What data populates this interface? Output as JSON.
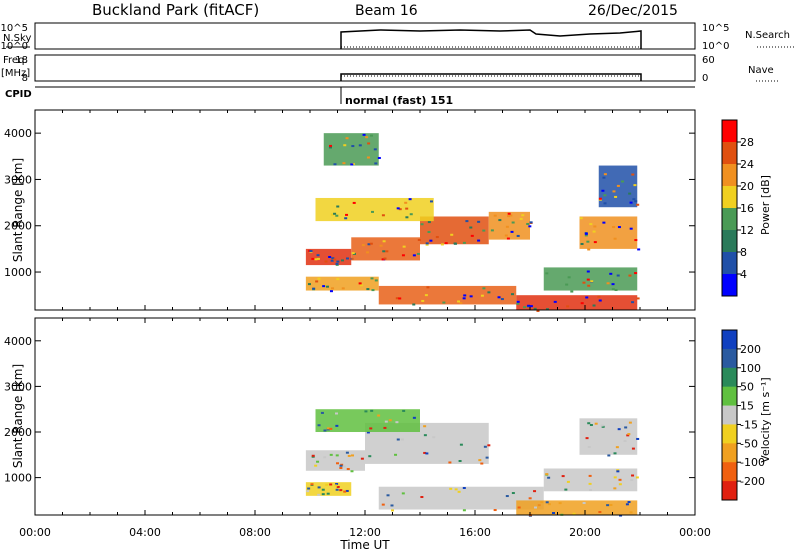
{
  "header": {
    "title": "Buckland Park (fitACF)",
    "beam": "Beam 16",
    "date": "26/Dec/2015"
  },
  "status_panels": {
    "nsky_label": "N.Sky",
    "nsearch_label": "N.Search",
    "noise_ticks_left": [
      "10^5",
      "10^0"
    ],
    "noise_ticks_right": [
      "10^5",
      "10^0"
    ],
    "freq_label_line1": "Freq.",
    "freq_label_line2": "[MHz]",
    "freq_ticks": [
      "18",
      "8"
    ],
    "nave_label": "Nave",
    "nave_ticks": [
      "60",
      "0"
    ],
    "cpid_label": "CPID",
    "cpid_text": "normal (fast) 151"
  },
  "chart_data": [
    {
      "type": "heatmap",
      "name": "power",
      "ylabel": "Slant Range [km]",
      "yticks": [
        "1000",
        "2000",
        "3000",
        "4000"
      ],
      "ylim": [
        180,
        4500
      ],
      "xlim": [
        "00:00",
        "24:00"
      ],
      "data_span": [
        "09:48",
        "21:54"
      ],
      "colorbar_label": "Power [dB]",
      "colorbar_ticks": [
        "4",
        "8",
        "12",
        "16",
        "20",
        "24",
        "28"
      ],
      "colorbar_colors": [
        "#0000ff",
        "#2050a8",
        "#2a7a5a",
        "#4a9a55",
        "#f0d020",
        "#f09020",
        "#e05010",
        "#ff0000"
      ],
      "bands": [
        {
          "t0": 9.85,
          "t1": 11.5,
          "r0": 1150,
          "r1": 1500,
          "color": "#e03010"
        },
        {
          "t0": 11.5,
          "t1": 14.0,
          "r0": 1250,
          "r1": 1750,
          "color": "#e86018"
        },
        {
          "t0": 14.0,
          "t1": 16.5,
          "r0": 1600,
          "r1": 2200,
          "color": "#e05010"
        },
        {
          "t0": 16.5,
          "t1": 18.0,
          "r0": 1700,
          "r1": 2300,
          "color": "#f09020"
        },
        {
          "t0": 9.85,
          "t1": 12.5,
          "r0": 600,
          "r1": 900,
          "color": "#f0a020"
        },
        {
          "t0": 12.5,
          "t1": 17.5,
          "r0": 300,
          "r1": 700,
          "color": "#e86018"
        },
        {
          "t0": 17.5,
          "t1": 21.9,
          "r0": 180,
          "r1": 500,
          "color": "#e03010"
        },
        {
          "t0": 18.5,
          "t1": 21.9,
          "r0": 600,
          "r1": 1100,
          "color": "#4a9a55"
        },
        {
          "t0": 19.8,
          "t1": 21.9,
          "r0": 1500,
          "r1": 2200,
          "color": "#f09020"
        },
        {
          "t0": 10.2,
          "t1": 14.5,
          "r0": 2100,
          "r1": 2600,
          "color": "#f0d020"
        },
        {
          "t0": 10.5,
          "t1": 12.5,
          "r0": 3300,
          "r1": 4000,
          "color": "#4a9a55"
        },
        {
          "t0": 20.5,
          "t1": 21.9,
          "r0": 2400,
          "r1": 3300,
          "color": "#2050a8"
        }
      ]
    },
    {
      "type": "heatmap",
      "name": "velocity",
      "ylabel": "Slant Range [km]",
      "yticks": [
        "1000",
        "2000",
        "3000",
        "4000"
      ],
      "ylim": [
        180,
        4500
      ],
      "xlim": [
        "00:00",
        "24:00"
      ],
      "xticks": [
        "00:00",
        "04:00",
        "08:00",
        "12:00",
        "16:00",
        "20:00",
        "00:00"
      ],
      "xlabel": "Time UT",
      "colorbar_label": "Velocity [m s⁻¹]",
      "colorbar_ticks": [
        "200",
        "100",
        "50",
        "15",
        "-15",
        "-50",
        "-100",
        "-200"
      ],
      "colorbar_colors": [
        "#1040c0",
        "#2a5aa0",
        "#2a8a5a",
        "#60c040",
        "#c8c8c8",
        "#f0d020",
        "#f0a020",
        "#f06010",
        "#e02010"
      ],
      "bands": [
        {
          "t0": 9.85,
          "t1": 12.0,
          "r0": 1150,
          "r1": 1600,
          "color": "#c8c8c8"
        },
        {
          "t0": 12.0,
          "t1": 16.5,
          "r0": 1300,
          "r1": 2200,
          "color": "#c8c8c8"
        },
        {
          "t0": 9.85,
          "t1": 11.5,
          "r0": 600,
          "r1": 900,
          "color": "#f0d020"
        },
        {
          "t0": 12.5,
          "t1": 18.5,
          "r0": 300,
          "r1": 800,
          "color": "#c8c8c8"
        },
        {
          "t0": 17.5,
          "t1": 21.9,
          "r0": 180,
          "r1": 500,
          "color": "#f0a020"
        },
        {
          "t0": 19.8,
          "t1": 21.9,
          "r0": 1500,
          "r1": 2300,
          "color": "#c8c8c8"
        },
        {
          "t0": 10.2,
          "t1": 14.0,
          "r0": 2000,
          "r1": 2500,
          "color": "#60c040"
        },
        {
          "t0": 18.5,
          "t1": 21.9,
          "r0": 700,
          "r1": 1200,
          "color": "#c8c8c8"
        }
      ]
    }
  ]
}
